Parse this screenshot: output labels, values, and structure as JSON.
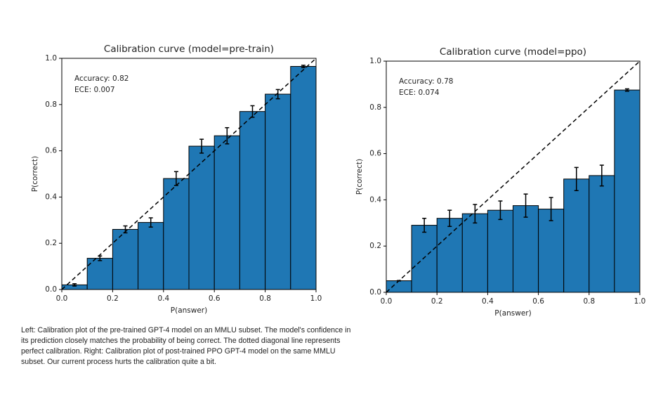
{
  "chart_data": [
    {
      "type": "histogram",
      "title": "Calibration curve (model=pre-train)",
      "xlabel": "P(answer)",
      "ylabel": "P(correct)",
      "annotations": [
        "Accuracy: 0.82",
        "ECE: 0.007"
      ],
      "bins": [
        0,
        0.1,
        0.2,
        0.3,
        0.4,
        0.5,
        0.6,
        0.7,
        0.8,
        0.9,
        1.0
      ],
      "values": [
        0.02,
        0.135,
        0.26,
        0.29,
        0.48,
        0.62,
        0.665,
        0.77,
        0.845,
        0.965
      ],
      "errors": [
        0.005,
        0.01,
        0.015,
        0.02,
        0.03,
        0.03,
        0.035,
        0.025,
        0.02,
        0.005
      ],
      "color": "#1f77b4",
      "edgecolor": "#000000",
      "xlim": [
        0,
        1
      ],
      "ylim": [
        0,
        1
      ],
      "xticks": [
        {
          "value": 0,
          "label": "0.0"
        },
        0.2,
        0.4,
        0.6,
        0.8,
        {
          "value": 1,
          "label": "1.0"
        }
      ],
      "yticks": [
        {
          "value": 0,
          "label": "0.0"
        },
        0.2,
        0.4,
        0.6,
        0.8,
        {
          "value": 1,
          "label": "1.0"
        }
      ]
    },
    {
      "type": "histogram",
      "title": "Calibration curve (model=ppo)",
      "xlabel": "P(answer)",
      "ylabel": "P(correct)",
      "annotations": [
        "Accuracy: 0.78",
        "ECE: 0.074"
      ],
      "bins": [
        0,
        0.1,
        0.2,
        0.3,
        0.4,
        0.5,
        0.6,
        0.7,
        0.8,
        0.9,
        1.0
      ],
      "values": [
        0.05,
        0.29,
        0.32,
        0.34,
        0.355,
        0.375,
        0.36,
        0.49,
        0.505,
        0.875
      ],
      "errors": [
        0.001,
        0.03,
        0.035,
        0.04,
        0.04,
        0.05,
        0.05,
        0.05,
        0.045,
        0.005
      ],
      "color": "#1f77b4",
      "edgecolor": "#000000",
      "xlim": [
        0,
        1
      ],
      "ylim": [
        0,
        1
      ],
      "xticks": [
        {
          "value": 0,
          "label": "0.0"
        },
        0.2,
        0.4,
        0.6,
        0.8,
        {
          "value": 1,
          "label": "1.0"
        }
      ],
      "yticks": [
        {
          "value": 0,
          "label": "0.0"
        },
        0.2,
        0.4,
        0.6,
        0.8,
        {
          "value": 1,
          "label": "1.0"
        }
      ]
    }
  ],
  "caption": "Left: Calibration plot of the pre-trained GPT-4 model on an MMLU subset. The model's confidence in its prediction closely matches the probability of being correct. The dotted diagonal line represents perfect calibration. Right: Calibration plot of post-trained PPO GPT-4 model on the same MMLU subset. Our current process hurts the calibration quite a bit."
}
